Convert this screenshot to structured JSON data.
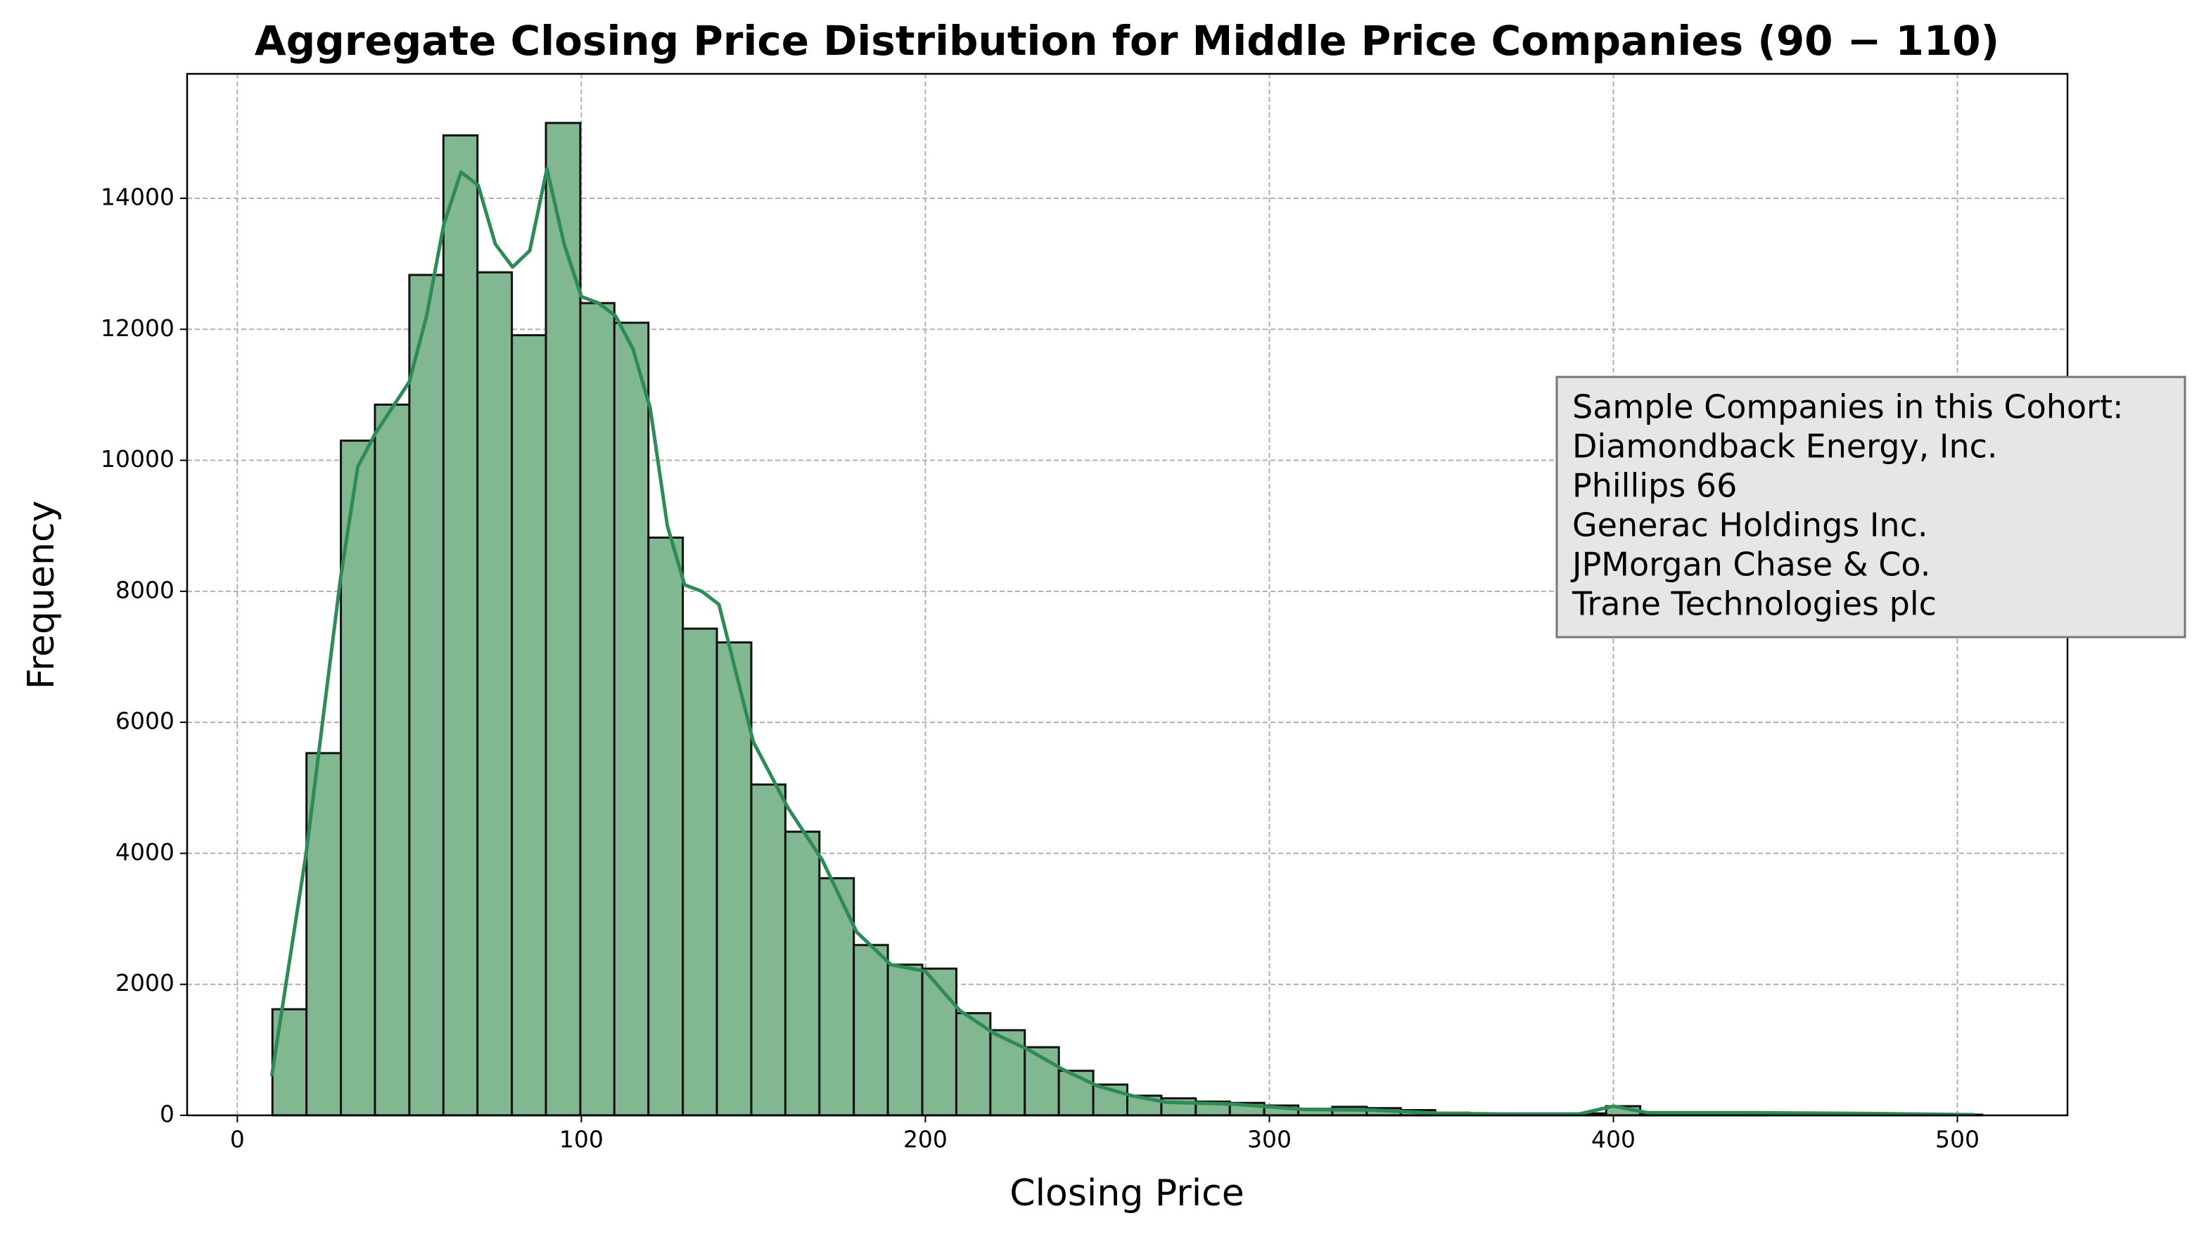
{
  "chart_data": {
    "type": "histogram",
    "title": "Aggregate Closing Price Distribution for Middle Price Companies (90 − 110)",
    "x_label": "Closing Price",
    "y_label": "Frequency",
    "bins": [
      10.2,
      20.1,
      30.1,
      40.0,
      50.0,
      59.9,
      69.8,
      79.8,
      89.7,
      99.7,
      109.6,
      119.5,
      129.5,
      139.4,
      149.4,
      159.3,
      169.2,
      179.2,
      189.1,
      199.1,
      209.0,
      218.9,
      228.9,
      238.8,
      248.8,
      258.7,
      268.6,
      278.6,
      288.5,
      298.5,
      308.4,
      318.3,
      328.3,
      338.2,
      348.2,
      358.1,
      368.0,
      378.0,
      387.9,
      397.9,
      407.8,
      417.7,
      427.7,
      437.6,
      447.6,
      457.5,
      467.4,
      477.4,
      487.3,
      497.3,
      507.2
    ],
    "counts": [
      1620,
      5530,
      10300,
      10850,
      12830,
      14960,
      12870,
      11910,
      15150,
      12400,
      12100,
      8820,
      7430,
      7220,
      5050,
      4330,
      3620,
      2600,
      2300,
      2240,
      1560,
      1300,
      1040,
      680,
      470,
      300,
      260,
      210,
      190,
      150,
      100,
      130,
      110,
      80,
      40,
      30,
      20,
      20,
      30,
      140,
      20,
      20,
      20,
      30,
      30,
      20,
      10,
      10,
      10,
      10
    ],
    "color": "#81b892",
    "edge_color": "#111111",
    "kde": {
      "color": "#2e8b57",
      "x": [
        10,
        20,
        30,
        35,
        40,
        50,
        55,
        60,
        65,
        70,
        75,
        80,
        85,
        90,
        95,
        100,
        105,
        110,
        115,
        120,
        125,
        130,
        135,
        140,
        150,
        160,
        170,
        180,
        190,
        200,
        210,
        220,
        230,
        240,
        250,
        260,
        270,
        290,
        310,
        330,
        350,
        370,
        390,
        400,
        410,
        440,
        470,
        505
      ],
      "values": [
        600,
        4000,
        8200,
        9900,
        10400,
        11200,
        12200,
        13600,
        14400,
        14200,
        13300,
        12950,
        13200,
        14450,
        13300,
        12500,
        12400,
        12200,
        11700,
        10800,
        9000,
        8100,
        8000,
        7800,
        5700,
        4700,
        3900,
        2800,
        2300,
        2200,
        1600,
        1250,
        1000,
        700,
        450,
        300,
        200,
        170,
        90,
        80,
        30,
        20,
        20,
        140,
        40,
        40,
        30,
        10
      ]
    },
    "xlim": [
      -14.6,
      532.0
    ],
    "ylim": [
      0,
      15900
    ],
    "xticks": [
      0,
      100,
      200,
      300,
      400,
      500
    ],
    "yticks": [
      0,
      2000,
      4000,
      6000,
      8000,
      10000,
      12000,
      14000
    ],
    "grid": true,
    "annotation": [
      "Sample Companies in this Cohort:",
      "Diamondback Energy, Inc.",
      "Phillips 66",
      "Generac Holdings Inc.",
      "JPMorgan Chase & Co.",
      "Trane Technologies plc"
    ]
  }
}
